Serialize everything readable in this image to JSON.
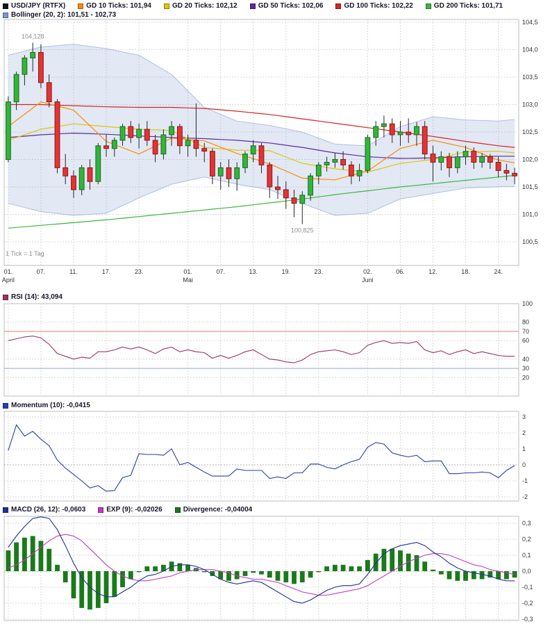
{
  "colors": {
    "background": "#ffffff",
    "grid": "#d9d9d9",
    "candle_up": "#31b53a",
    "candle_up_border": "#1c6b1c",
    "candle_down": "#e23434",
    "candle_down_border": "#8e1414",
    "band": "#7d98cd"
  },
  "legend": {
    "main": [
      {
        "name": "usdjpy",
        "color": "#141414",
        "label": "USD/JPY (RTFX)"
      },
      {
        "name": "gd10",
        "color": "#ff8c00",
        "label": "GD 10 Ticks: 101,94"
      },
      {
        "name": "gd20",
        "color": "#ddc60a",
        "label": "GD 20 Ticks: 102,12"
      },
      {
        "name": "gd50",
        "color": "#5a2ca0",
        "label": "GD 50 Ticks: 102,06"
      },
      {
        "name": "gd100",
        "color": "#d62422",
        "label": "GD 100 Ticks: 102,22"
      },
      {
        "name": "gd200",
        "color": "#3db53d",
        "label": "GD 200 Ticks: 101,71"
      }
    ],
    "bollinger": [
      {
        "name": "bollinger",
        "color": "#7d98cd",
        "label": "Bollinger (20, 2): 101,51 - 102,73"
      }
    ],
    "rsi": [
      {
        "name": "rsi",
        "color": "#993366",
        "label": "RSI (14): 43,094"
      }
    ],
    "momentum": [
      {
        "name": "momentum",
        "color": "#2b3fae",
        "label": "Momentum (10): -0,0415"
      }
    ],
    "macd": [
      {
        "name": "macd",
        "color": "#1f2f96",
        "label": "MACD (26, 12): -0,0603"
      },
      {
        "name": "exp",
        "color": "#c23cc2",
        "label": "EXP (9): -0,02026"
      },
      {
        "name": "divergence",
        "color": "#1a7a1a",
        "label": "Divergence: -0,04004"
      }
    ]
  },
  "chart_data": [
    {
      "type": "candlestick",
      "title": "USD/JPY (RTFX)",
      "timeframe_note": "1 Tick = 1 Tag",
      "ylim": [
        100.07,
        104.55
      ],
      "y_ticks": [
        {
          "v": 104.5,
          "label": "104,5"
        },
        {
          "v": 104.0,
          "label": "104,0"
        },
        {
          "v": 103.5,
          "label": "103,5"
        },
        {
          "v": 103.0,
          "label": "103,0"
        },
        {
          "v": 102.5,
          "label": "102,5"
        },
        {
          "v": 102.0,
          "label": "102,0"
        },
        {
          "v": 101.5,
          "label": "101,5"
        },
        {
          "v": 101.0,
          "label": "101,0"
        },
        {
          "v": 100.5,
          "label": "100,5"
        }
      ],
      "x_ticks": [
        {
          "i": 0,
          "label": "01.",
          "month": "April"
        },
        {
          "i": 4,
          "label": "07."
        },
        {
          "i": 8,
          "label": "11."
        },
        {
          "i": 12,
          "label": "17."
        },
        {
          "i": 16,
          "label": "23."
        },
        {
          "i": 22,
          "label": "01.",
          "month": "Mai"
        },
        {
          "i": 26,
          "label": "07."
        },
        {
          "i": 30,
          "label": "13."
        },
        {
          "i": 34,
          "label": "19."
        },
        {
          "i": 38,
          "label": "23."
        },
        {
          "i": 44,
          "label": "02.",
          "month": "Juni"
        },
        {
          "i": 48,
          "label": "06."
        },
        {
          "i": 52,
          "label": "12."
        },
        {
          "i": 56,
          "label": "18."
        },
        {
          "i": 60,
          "label": "24."
        }
      ],
      "annotations": [
        {
          "text": "104,128",
          "i": 3,
          "v": 104.128,
          "place": "above"
        },
        {
          "text": "100,825",
          "i": 36,
          "v": 100.825,
          "place": "below"
        }
      ],
      "candles": [
        [
          102.0,
          103.15,
          101.95,
          103.05
        ],
        [
          103.05,
          103.6,
          102.9,
          103.55
        ],
        [
          103.55,
          103.9,
          103.35,
          103.85
        ],
        [
          103.85,
          104.128,
          103.6,
          103.95
        ],
        [
          103.95,
          104.1,
          103.3,
          103.4
        ],
        [
          103.4,
          103.55,
          102.95,
          103.05
        ],
        [
          103.05,
          103.1,
          101.75,
          101.85
        ],
        [
          101.85,
          102.1,
          101.55,
          101.7
        ],
        [
          101.7,
          101.8,
          101.3,
          101.45
        ],
        [
          101.45,
          101.9,
          101.35,
          101.85
        ],
        [
          101.85,
          102.0,
          101.45,
          101.6
        ],
        [
          101.6,
          102.3,
          101.55,
          102.25
        ],
        [
          102.25,
          102.45,
          102.05,
          102.2
        ],
        [
          102.2,
          102.4,
          102.05,
          102.35
        ],
        [
          102.35,
          102.65,
          102.25,
          102.6
        ],
        [
          102.6,
          102.7,
          102.3,
          102.4
        ],
        [
          102.4,
          102.65,
          102.2,
          102.55
        ],
        [
          102.55,
          102.7,
          102.25,
          102.35
        ],
        [
          102.35,
          102.45,
          101.95,
          102.1
        ],
        [
          102.1,
          102.55,
          102.0,
          102.45
        ],
        [
          102.45,
          102.7,
          102.25,
          102.6
        ],
        [
          102.6,
          102.65,
          102.1,
          102.25
        ],
        [
          102.25,
          102.45,
          102.05,
          102.35
        ],
        [
          102.35,
          103.02,
          102.05,
          102.2
        ],
        [
          102.2,
          102.3,
          101.95,
          102.15
        ],
        [
          102.15,
          102.2,
          101.55,
          101.7
        ],
        [
          101.7,
          101.95,
          101.45,
          101.85
        ],
        [
          101.85,
          102.0,
          101.5,
          101.65
        ],
        [
          101.65,
          101.95,
          101.43,
          101.85
        ],
        [
          101.85,
          102.15,
          101.75,
          102.1
        ],
        [
          102.1,
          102.35,
          101.95,
          102.25
        ],
        [
          102.25,
          102.3,
          101.75,
          101.9
        ],
        [
          101.9,
          101.95,
          101.3,
          101.5
        ],
        [
          101.5,
          101.7,
          101.28,
          101.45
        ],
        [
          101.45,
          101.6,
          101.1,
          101.3
        ],
        [
          101.3,
          101.45,
          100.95,
          101.2
        ],
        [
          101.2,
          101.42,
          100.825,
          101.35
        ],
        [
          101.35,
          101.75,
          101.25,
          101.7
        ],
        [
          101.7,
          101.95,
          101.55,
          101.9
        ],
        [
          101.9,
          102.05,
          101.78,
          101.95
        ],
        [
          101.95,
          102.12,
          101.85,
          102.0
        ],
        [
          102.0,
          102.15,
          101.82,
          101.9
        ],
        [
          101.9,
          101.97,
          101.55,
          101.7
        ],
        [
          101.7,
          101.92,
          101.6,
          101.8
        ],
        [
          101.8,
          102.45,
          101.75,
          102.4
        ],
        [
          102.4,
          102.7,
          102.25,
          102.6
        ],
        [
          102.6,
          102.8,
          102.4,
          102.65
        ],
        [
          102.65,
          102.75,
          102.3,
          102.45
        ],
        [
          102.45,
          102.7,
          102.25,
          102.5
        ],
        [
          102.5,
          102.75,
          102.3,
          102.45
        ],
        [
          102.45,
          102.68,
          102.25,
          102.6
        ],
        [
          102.6,
          102.7,
          102.0,
          102.1
        ],
        [
          102.1,
          102.25,
          101.6,
          101.95
        ],
        [
          101.95,
          102.15,
          101.8,
          102.05
        ],
        [
          102.05,
          102.12,
          101.68,
          101.85
        ],
        [
          101.85,
          102.15,
          101.75,
          102.05
        ],
        [
          102.05,
          102.25,
          101.9,
          102.15
        ],
        [
          102.15,
          102.22,
          101.83,
          101.95
        ],
        [
          101.95,
          102.12,
          101.85,
          102.05
        ],
        [
          102.05,
          102.1,
          101.83,
          101.95
        ],
        [
          101.95,
          102.05,
          101.68,
          101.8
        ],
        [
          101.8,
          101.92,
          101.62,
          101.75
        ],
        [
          101.75,
          101.85,
          101.55,
          101.7
        ]
      ],
      "overlay_sample_i": [
        0,
        4,
        8,
        12,
        16,
        20,
        24,
        28,
        32,
        36,
        40,
        44,
        48,
        52,
        56,
        60,
        62
      ],
      "overlays": [
        {
          "name": "bollinger-upper",
          "color": "#7d98cd",
          "values": [
            103.9,
            104.05,
            104.1,
            104.02,
            103.9,
            103.55,
            102.95,
            102.7,
            102.62,
            102.5,
            102.28,
            102.25,
            102.6,
            102.78,
            102.72,
            102.7,
            102.73
          ]
        },
        {
          "name": "bollinger-lower",
          "color": "#7d98cd",
          "values": [
            101.2,
            101.05,
            100.98,
            101.02,
            101.3,
            101.55,
            101.68,
            101.55,
            101.45,
            101.2,
            100.98,
            101.02,
            101.28,
            101.38,
            101.48,
            101.5,
            101.51
          ]
        },
        {
          "name": "gd200",
          "color": "#3db53d",
          "values": [
            100.75,
            100.8,
            100.85,
            100.9,
            100.96,
            101.02,
            101.08,
            101.14,
            101.21,
            101.28,
            101.36,
            101.43,
            101.5,
            101.56,
            101.62,
            101.68,
            101.71
          ]
        },
        {
          "name": "gd100",
          "color": "#d62422",
          "values": [
            103.0,
            103.0,
            102.98,
            102.96,
            102.95,
            102.95,
            102.93,
            102.88,
            102.82,
            102.74,
            102.66,
            102.58,
            102.5,
            102.42,
            102.33,
            102.25,
            102.22
          ]
        },
        {
          "name": "gd50",
          "color": "#5a2ca0",
          "values": [
            102.4,
            102.45,
            102.48,
            102.46,
            102.43,
            102.4,
            102.38,
            102.35,
            102.3,
            102.22,
            102.12,
            102.05,
            102.02,
            102.03,
            102.05,
            102.06,
            102.06
          ]
        },
        {
          "name": "gd20",
          "color": "#ddc60a",
          "values": [
            102.35,
            102.55,
            102.65,
            102.6,
            102.55,
            102.53,
            102.22,
            102.17,
            102.16,
            101.93,
            101.83,
            101.77,
            101.93,
            102.0,
            102.14,
            102.15,
            102.12
          ]
        },
        {
          "name": "gd10",
          "color": "#ff8c00",
          "values": [
            102.6,
            103.05,
            102.9,
            102.33,
            102.1,
            102.39,
            102.34,
            102.11,
            101.92,
            101.66,
            101.63,
            101.79,
            102.2,
            102.35,
            102.22,
            101.99,
            101.94
          ]
        }
      ]
    },
    {
      "type": "line",
      "name": "RSI (14)",
      "color": "#993366",
      "ylim": [
        0,
        100
      ],
      "y_ticks": [
        {
          "v": 100,
          "label": "100"
        },
        {
          "v": 80,
          "label": "80"
        },
        {
          "v": 70,
          "label": "70",
          "line": "#e37b7b"
        },
        {
          "v": 60,
          "label": "60"
        },
        {
          "v": 40,
          "label": "40"
        },
        {
          "v": 30,
          "label": "30",
          "line": "#96a5d6"
        },
        {
          "v": 20,
          "label": "20"
        }
      ],
      "values": [
        60,
        62,
        64,
        65,
        63,
        56,
        46,
        43,
        40,
        42,
        41,
        48,
        48,
        50,
        53,
        51,
        53,
        50,
        46,
        51,
        53,
        48,
        50,
        48,
        47,
        41,
        44,
        41,
        44,
        48,
        50,
        45,
        40,
        39,
        37,
        36,
        39,
        45,
        48,
        49,
        50,
        48,
        45,
        47,
        55,
        58,
        60,
        57,
        58,
        57,
        59,
        50,
        47,
        49,
        45,
        48,
        50,
        46,
        48,
        46,
        44,
        43,
        43.094
      ]
    },
    {
      "type": "line",
      "name": "Momentum (10)",
      "color": "#2b3fae",
      "ylim": [
        -2.26,
        3.35
      ],
      "y_ticks": [
        {
          "v": 3,
          "label": "3"
        },
        {
          "v": 2,
          "label": "2"
        },
        {
          "v": 1,
          "label": "1"
        },
        {
          "v": 0,
          "label": "0"
        },
        {
          "v": -1,
          "label": "-1"
        },
        {
          "v": -2,
          "label": "-2"
        }
      ],
      "values": [
        0.9,
        2.5,
        1.8,
        2.1,
        1.6,
        1.2,
        0.3,
        -0.2,
        -0.6,
        -1.0,
        -1.45,
        -1.3,
        -1.65,
        -1.6,
        -0.8,
        -0.65,
        0.7,
        0.65,
        0.65,
        0.6,
        1.0,
        0.0,
        0.15,
        -0.15,
        -0.45,
        -0.7,
        -0.7,
        -0.7,
        -0.25,
        -0.35,
        -0.35,
        -0.35,
        -0.85,
        -0.75,
        -0.85,
        -0.5,
        -0.5,
        0.05,
        0.05,
        -0.15,
        -0.25,
        0.0,
        0.2,
        0.35,
        1.1,
        1.4,
        1.3,
        0.75,
        0.6,
        0.5,
        0.6,
        0.2,
        0.25,
        0.25,
        -0.55,
        -0.55,
        -0.5,
        -0.5,
        -0.45,
        -0.5,
        -0.8,
        -0.35,
        -0.0415
      ]
    },
    {
      "type": "macd",
      "name": "MACD (26, 12)",
      "colors": {
        "macd": "#1f2f96",
        "signal": "#c23cc2",
        "histogram": "#1a7a1a"
      },
      "ylim": [
        -0.309,
        0.343
      ],
      "y_ticks": [
        {
          "v": 0.3,
          "label": "0,3"
        },
        {
          "v": 0.2,
          "label": "0,2"
        },
        {
          "v": 0.1,
          "label": "0,1"
        },
        {
          "v": 0,
          "label": "0,0"
        },
        {
          "v": -0.1,
          "label": "-0,1"
        },
        {
          "v": -0.2,
          "label": "-0,2"
        },
        {
          "v": -0.3,
          "label": "-0,3"
        }
      ],
      "macd": [
        0.15,
        0.22,
        0.28,
        0.33,
        0.34,
        0.33,
        0.26,
        0.16,
        0.05,
        -0.04,
        -0.1,
        -0.14,
        -0.16,
        -0.16,
        -0.13,
        -0.1,
        -0.06,
        -0.03,
        -0.02,
        0.0,
        0.03,
        0.04,
        0.04,
        0.03,
        0.01,
        -0.02,
        -0.05,
        -0.07,
        -0.08,
        -0.07,
        -0.06,
        -0.07,
        -0.1,
        -0.13,
        -0.16,
        -0.19,
        -0.2,
        -0.18,
        -0.15,
        -0.12,
        -0.1,
        -0.09,
        -0.09,
        -0.08,
        -0.02,
        0.05,
        0.11,
        0.14,
        0.16,
        0.17,
        0.18,
        0.16,
        0.12,
        0.09,
        0.05,
        0.02,
        0.0,
        -0.01,
        -0.02,
        -0.03,
        -0.05,
        -0.06,
        -0.0603
      ],
      "signal": [
        0.02,
        0.04,
        0.07,
        0.11,
        0.15,
        0.19,
        0.22,
        0.23,
        0.22,
        0.19,
        0.14,
        0.09,
        0.04,
        0.0,
        -0.03,
        -0.05,
        -0.06,
        -0.06,
        -0.05,
        -0.04,
        -0.03,
        -0.01,
        0.0,
        0.01,
        0.01,
        0.01,
        0.0,
        -0.01,
        -0.03,
        -0.04,
        -0.05,
        -0.05,
        -0.06,
        -0.07,
        -0.09,
        -0.11,
        -0.13,
        -0.14,
        -0.15,
        -0.15,
        -0.14,
        -0.13,
        -0.12,
        -0.11,
        -0.09,
        -0.06,
        -0.03,
        0.0,
        0.03,
        0.06,
        0.08,
        0.1,
        0.11,
        0.11,
        0.1,
        0.08,
        0.06,
        0.04,
        0.03,
        0.01,
        0.0,
        -0.01,
        -0.02026
      ],
      "histogram_rule": "macd_minus_signal"
    }
  ]
}
